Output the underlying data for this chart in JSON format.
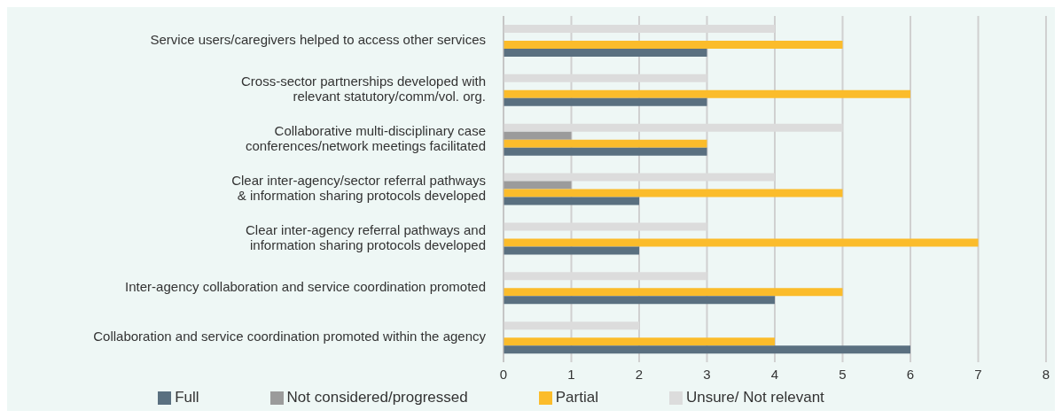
{
  "chart_data": {
    "type": "bar",
    "orientation": "horizontal",
    "categories": [
      "Service users/caregivers helped to access other services",
      "Cross-sector partnerships developed with\nrelevant statutory/comm/vol. org.",
      "Collaborative multi-disciplinary case\nconferences/network meetings facilitated",
      "Clear inter-agency/sector referral pathways\n& information sharing protocols developed",
      "Clear inter-agency referral pathways and\ninformation sharing protocols developed",
      "Inter-agency collaboration and service coordination promoted",
      "Collaboration and service coordination promoted within the agency"
    ],
    "series": [
      {
        "name": "Unsure/ Not relevant",
        "color": "#dcdcdc",
        "values": [
          4,
          3,
          5,
          4,
          3,
          3,
          2
        ]
      },
      {
        "name": "Not considered/progressed",
        "color": "#9b9b9b",
        "values": [
          0,
          0,
          1,
          1,
          0,
          0,
          0
        ]
      },
      {
        "name": "Partial",
        "color": "#fbbc2b",
        "values": [
          5,
          6,
          3,
          5,
          7,
          5,
          4
        ]
      },
      {
        "name": "Full",
        "color": "#5a7080",
        "values": [
          3,
          3,
          3,
          2,
          2,
          4,
          6
        ]
      }
    ],
    "xlim": [
      0,
      8
    ],
    "xticks": [
      0,
      1,
      2,
      3,
      4,
      5,
      6,
      7,
      8
    ],
    "grid": "x",
    "legend": "bottom"
  }
}
